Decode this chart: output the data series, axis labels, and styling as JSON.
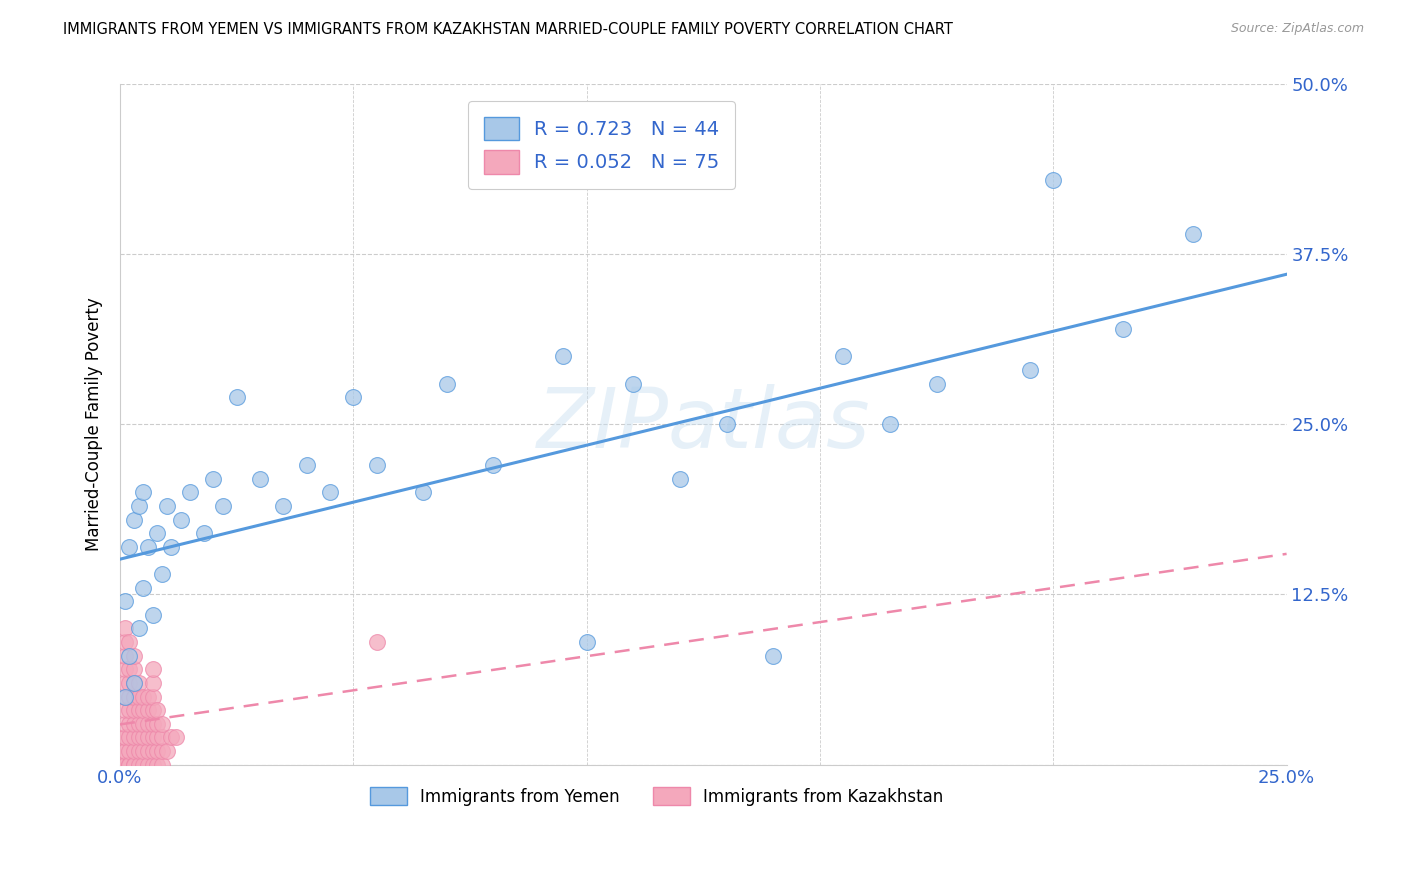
{
  "title": "IMMIGRANTS FROM YEMEN VS IMMIGRANTS FROM KAZAKHSTAN MARRIED-COUPLE FAMILY POVERTY CORRELATION CHART",
  "source": "Source: ZipAtlas.com",
  "ylabel_label": "Married-Couple Family Poverty",
  "legend_label1": "Immigrants from Yemen",
  "legend_label2": "Immigrants from Kazakhstan",
  "R1": 0.723,
  "N1": 44,
  "R2": 0.052,
  "N2": 75,
  "color_yemen": "#a8c8e8",
  "color_kazakhstan": "#f4a8bc",
  "color_line_yemen": "#5599dd",
  "color_line_kazakhstan": "#ee88aa",
  "color_tick_labels": "#3366cc",
  "watermark": "ZIPatlas",
  "xlim": [
    0,
    0.25
  ],
  "ylim": [
    0,
    0.5
  ],
  "yemen_x": [
    0.001,
    0.001,
    0.002,
    0.002,
    0.003,
    0.003,
    0.004,
    0.004,
    0.005,
    0.005,
    0.006,
    0.007,
    0.008,
    0.009,
    0.01,
    0.011,
    0.013,
    0.015,
    0.018,
    0.02,
    0.022,
    0.025,
    0.03,
    0.035,
    0.04,
    0.045,
    0.05,
    0.055,
    0.065,
    0.07,
    0.08,
    0.095,
    0.1,
    0.11,
    0.12,
    0.13,
    0.14,
    0.155,
    0.165,
    0.175,
    0.195,
    0.2,
    0.215,
    0.23
  ],
  "yemen_y": [
    0.05,
    0.12,
    0.08,
    0.16,
    0.06,
    0.18,
    0.1,
    0.19,
    0.13,
    0.2,
    0.16,
    0.11,
    0.17,
    0.14,
    0.19,
    0.16,
    0.18,
    0.2,
    0.17,
    0.21,
    0.19,
    0.27,
    0.21,
    0.19,
    0.22,
    0.2,
    0.27,
    0.22,
    0.2,
    0.28,
    0.22,
    0.3,
    0.09,
    0.28,
    0.21,
    0.25,
    0.08,
    0.3,
    0.25,
    0.28,
    0.29,
    0.43,
    0.32,
    0.39
  ],
  "kazakhstan_x": [
    0.001,
    0.001,
    0.001,
    0.001,
    0.001,
    0.001,
    0.001,
    0.001,
    0.001,
    0.001,
    0.001,
    0.001,
    0.001,
    0.001,
    0.001,
    0.002,
    0.002,
    0.002,
    0.002,
    0.002,
    0.002,
    0.002,
    0.002,
    0.002,
    0.002,
    0.003,
    0.003,
    0.003,
    0.003,
    0.003,
    0.003,
    0.003,
    0.003,
    0.003,
    0.003,
    0.004,
    0.004,
    0.004,
    0.004,
    0.004,
    0.004,
    0.004,
    0.005,
    0.005,
    0.005,
    0.005,
    0.005,
    0.005,
    0.006,
    0.006,
    0.006,
    0.006,
    0.006,
    0.006,
    0.007,
    0.007,
    0.007,
    0.007,
    0.007,
    0.007,
    0.007,
    0.007,
    0.008,
    0.008,
    0.008,
    0.008,
    0.008,
    0.009,
    0.009,
    0.009,
    0.009,
    0.01,
    0.011,
    0.012,
    0.055
  ],
  "kazakhstan_y": [
    0.0,
    0.0,
    0.0,
    0.01,
    0.01,
    0.02,
    0.02,
    0.03,
    0.04,
    0.05,
    0.06,
    0.07,
    0.08,
    0.09,
    0.1,
    0.0,
    0.0,
    0.01,
    0.02,
    0.03,
    0.04,
    0.05,
    0.06,
    0.07,
    0.09,
    0.0,
    0.0,
    0.01,
    0.02,
    0.03,
    0.04,
    0.05,
    0.06,
    0.07,
    0.08,
    0.0,
    0.01,
    0.02,
    0.03,
    0.04,
    0.05,
    0.06,
    0.0,
    0.01,
    0.02,
    0.03,
    0.04,
    0.05,
    0.0,
    0.01,
    0.02,
    0.03,
    0.04,
    0.05,
    0.0,
    0.01,
    0.02,
    0.03,
    0.04,
    0.05,
    0.06,
    0.07,
    0.0,
    0.01,
    0.02,
    0.03,
    0.04,
    0.0,
    0.01,
    0.02,
    0.03,
    0.01,
    0.02,
    0.02,
    0.09
  ]
}
